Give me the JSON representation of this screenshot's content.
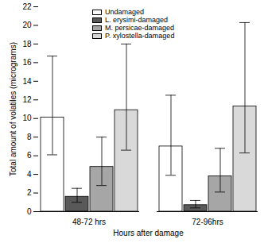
{
  "chart_data": {
    "type": "bar",
    "x_label": "Hours after damage",
    "y_label": "Total amount of volatiles (micrograms)",
    "categories": [
      "48-72 hrs",
      "72-96hrs"
    ],
    "series": [
      {
        "name": "Undamaged",
        "color": "#ffffff",
        "values": [
          10.1,
          7.0
        ],
        "error_low": [
          6.1,
          3.9
        ],
        "error_high": [
          16.7,
          12.5
        ]
      },
      {
        "name": "L. erysimi-damaged",
        "color": "#595959",
        "values": [
          1.6,
          0.7
        ],
        "error_low": [
          1.0,
          0.4
        ],
        "error_high": [
          2.5,
          1.2
        ]
      },
      {
        "name": "M. persicae-damaged",
        "color": "#a6a6a6",
        "values": [
          4.8,
          3.8
        ],
        "error_low": [
          2.8,
          2.1
        ],
        "error_high": [
          8.0,
          6.8
        ]
      },
      {
        "name": "P. xylostella-damaged",
        "color": "#d9d9d9",
        "values": [
          10.9,
          11.3
        ],
        "error_low": [
          6.6,
          6.3
        ],
        "error_high": [
          18.0,
          20.3
        ]
      }
    ],
    "ylim": [
      0,
      22
    ],
    "yticks": [
      0,
      2,
      4,
      6,
      8,
      10,
      12,
      14,
      16,
      18,
      20,
      22
    ],
    "legend": "top",
    "grid": false
  }
}
